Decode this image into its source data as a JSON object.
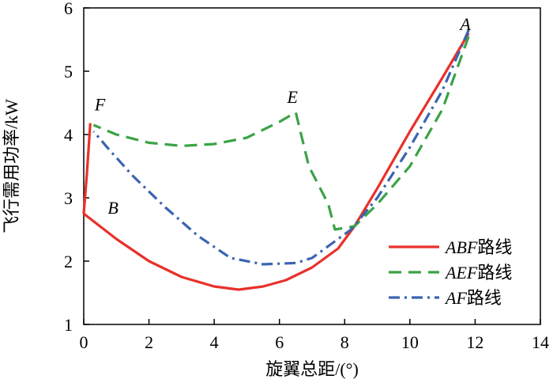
{
  "chart_data": {
    "type": "line",
    "xlabel": "旋翼总距/(°)",
    "ylabel": "飞行需用功率/kW",
    "xlim": [
      0,
      14
    ],
    "ylim": [
      1,
      6
    ],
    "xticks": [
      0,
      2,
      4,
      6,
      8,
      10,
      12,
      14
    ],
    "yticks": [
      1,
      2,
      3,
      4,
      5,
      6
    ],
    "grid": false,
    "legend_position": "lower-right",
    "series": [
      {
        "name_italic": "ABF",
        "name_suffix": "路线",
        "color": "#e8312a",
        "style": "solid",
        "x": [
          11.8,
          11.0,
          10.0,
          9.0,
          8.3,
          7.8,
          7.0,
          6.2,
          5.5,
          4.75,
          4.0,
          3.0,
          2.0,
          1.0,
          0.0,
          0.1,
          0.2
        ],
        "y": [
          5.6,
          4.9,
          4.05,
          3.15,
          2.55,
          2.2,
          1.9,
          1.7,
          1.6,
          1.55,
          1.6,
          1.75,
          2.0,
          2.35,
          2.75,
          3.4,
          4.18
        ]
      },
      {
        "name_italic": "AEF",
        "name_suffix": "路线",
        "color": "#3aa346",
        "style": "dashed",
        "x": [
          11.8,
          11.0,
          10.0,
          9.0,
          8.3,
          7.7,
          7.5,
          6.9,
          6.5,
          6.0,
          5.0,
          4.0,
          3.0,
          2.0,
          1.0,
          0.3
        ],
        "y": [
          5.55,
          4.4,
          3.5,
          2.9,
          2.55,
          2.5,
          2.9,
          3.5,
          4.35,
          4.2,
          3.95,
          3.85,
          3.82,
          3.87,
          4.0,
          4.15
        ]
      },
      {
        "name_italic": "AF",
        "name_suffix": "路线",
        "color": "#3a64b0",
        "style": "dashdot",
        "x": [
          11.8,
          11.0,
          10.0,
          9.0,
          8.2,
          7.0,
          6.5,
          5.5,
          4.5,
          3.5,
          2.5,
          1.5,
          0.8,
          0.3
        ],
        "y": [
          5.65,
          4.7,
          3.8,
          3.0,
          2.5,
          2.05,
          1.97,
          1.95,
          2.05,
          2.4,
          2.85,
          3.35,
          3.75,
          4.05
        ]
      }
    ],
    "annotations": [
      {
        "text": "A",
        "x": 11.7,
        "y": 5.65
      },
      {
        "text": "E",
        "x": 6.4,
        "y": 4.5
      },
      {
        "text": "F",
        "x": 0.5,
        "y": 4.38
      },
      {
        "text": "B",
        "x": 0.9,
        "y": 2.75
      }
    ]
  }
}
